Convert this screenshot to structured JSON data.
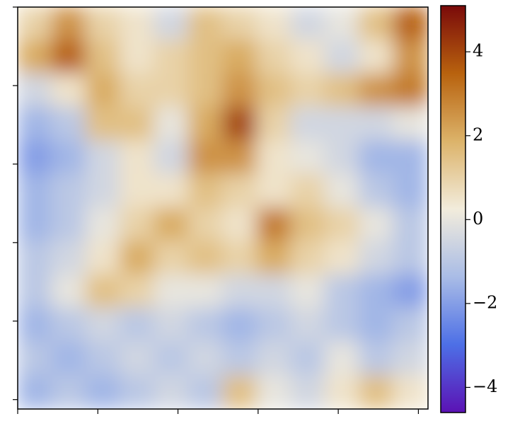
{
  "chart_data": {
    "type": "heatmap",
    "z": [
      [
        1,
        2.5,
        1,
        0.5,
        -0.5,
        1.5,
        1,
        0.5,
        -0.5,
        0,
        1.5,
        3.5
      ],
      [
        2,
        3.5,
        1.5,
        0.5,
        1,
        1.5,
        2,
        1,
        0.5,
        -0.5,
        0.5,
        2.5
      ],
      [
        -0.5,
        0.5,
        2,
        1,
        1,
        1.5,
        2.5,
        1.5,
        1,
        1.5,
        2.5,
        3
      ],
      [
        -1.5,
        -1,
        1.5,
        1.5,
        0,
        2,
        4,
        1,
        -0.5,
        -0.5,
        -0.5,
        0
      ],
      [
        -2,
        -1.5,
        -0.5,
        0.5,
        -0.5,
        2.5,
        2.5,
        0.5,
        0,
        -0.5,
        -1.5,
        -1.5
      ],
      [
        -1.5,
        -1,
        -0.5,
        0.5,
        0.5,
        1.5,
        1,
        0.5,
        1,
        0,
        -1,
        -1.5
      ],
      [
        -1.5,
        -1,
        0,
        1,
        2,
        1,
        0.5,
        3,
        1.5,
        1,
        0,
        -1
      ],
      [
        -1,
        -0.5,
        0.5,
        2,
        1,
        1.5,
        1,
        2,
        1,
        0.5,
        -0.5,
        -1
      ],
      [
        -1,
        0,
        1.5,
        1,
        0,
        0,
        -0.5,
        -0.5,
        0,
        -1,
        -1.5,
        -2
      ],
      [
        -1.5,
        -1,
        -0.5,
        -1,
        -0.5,
        -1,
        -1.5,
        -1,
        -0.5,
        -1,
        -1.5,
        -1
      ],
      [
        -1,
        -1.5,
        -1,
        -0.5,
        -1,
        -0.5,
        -1,
        -0.5,
        -1,
        0,
        -1,
        -0.5
      ],
      [
        -1.5,
        -1,
        -1.5,
        -1,
        -0.5,
        -1,
        1.5,
        0,
        -0.5,
        0.5,
        1.5,
        0.5
      ]
    ],
    "xlim": [
      0,
      512
    ],
    "xticks": [
      0,
      100,
      200,
      300,
      400,
      500
    ],
    "ylim": [
      512,
      0
    ],
    "yticks": [
      0,
      100,
      200,
      300,
      400,
      500
    ],
    "clim": [
      -4.6,
      5.1
    ],
    "colormap": [
      "#5b12b4",
      "#4d6fe6",
      "#a9bce6",
      "#f2ecdc",
      "#dcb36a",
      "#b8620e",
      "#7a0a0a"
    ],
    "colorbar_ticks": [
      4,
      2,
      0,
      {
        "value": -2,
        "label": "−2"
      },
      {
        "value": -4,
        "label": "−4"
      }
    ]
  }
}
